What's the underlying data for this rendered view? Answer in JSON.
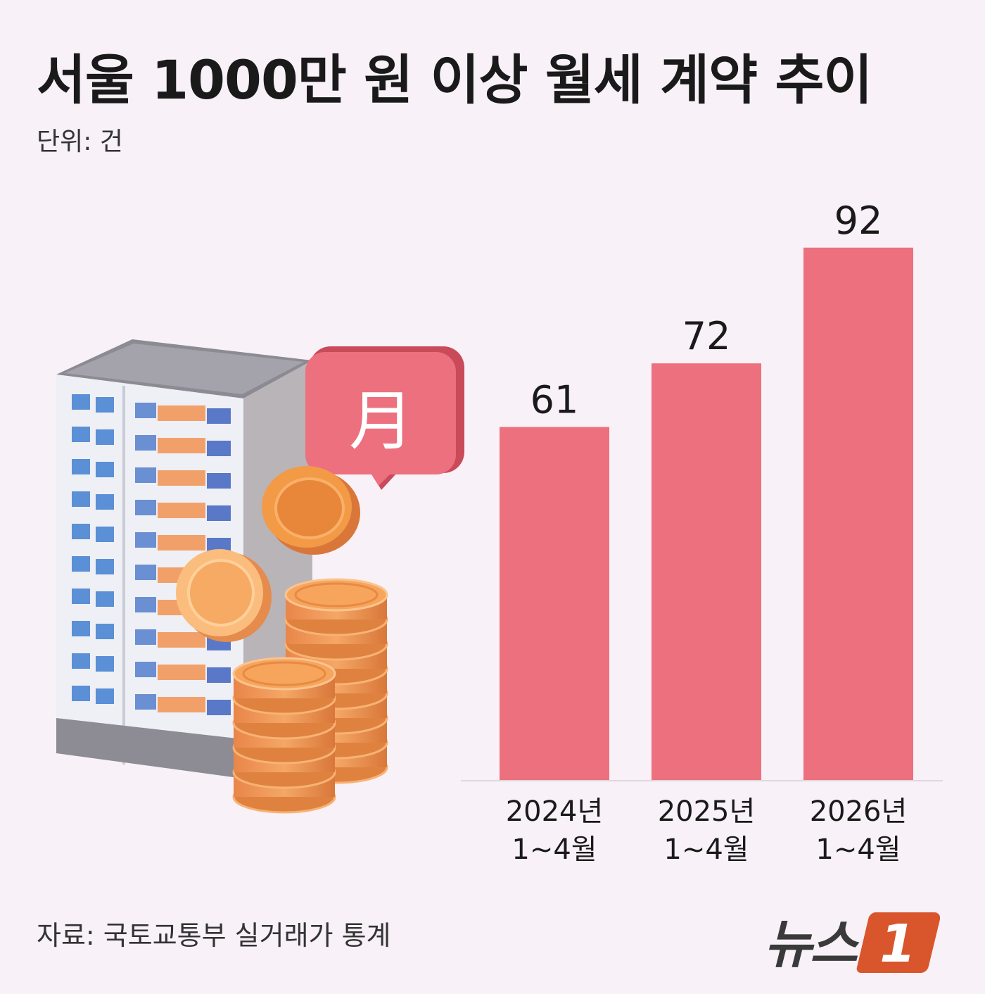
{
  "header": {
    "title": "서울 1000만 원 이상 월세 계약 추이",
    "unit": "단위: 건"
  },
  "footer": {
    "source": "자료: 국토교통부 실거래가 통계",
    "logo_text": "뉴스",
    "logo_mark": "1"
  },
  "illustration": {
    "badge_char": "月"
  },
  "colors": {
    "bar": "#ec707e",
    "background": "#f8f1f7",
    "logo_accent": "#d9552b"
  },
  "chart_data": {
    "type": "bar",
    "categories": [
      [
        "2024년",
        "1~4월"
      ],
      [
        "2025년",
        "1~4월"
      ],
      [
        "2026년",
        "1~4월"
      ]
    ],
    "values": [
      61,
      72,
      92
    ],
    "title": "서울 1000만 원 이상 월세 계약 추이",
    "unit": "단위: 건",
    "ylim": [
      0,
      100
    ],
    "grid": false,
    "data_labels": true
  }
}
